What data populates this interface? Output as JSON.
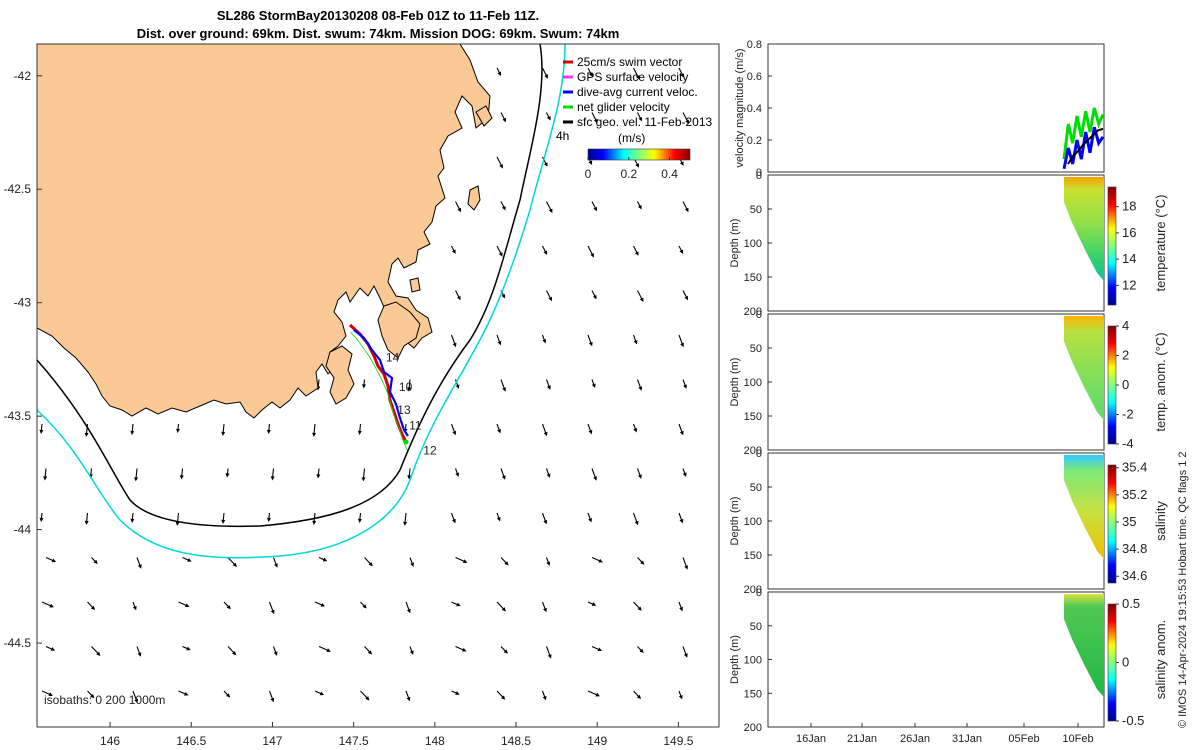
{
  "chart_data": [
    {
      "type": "map",
      "title": "SL286 StormBay20130208 08-Feb 01Z to 11-Feb 11Z.",
      "subtitle": "Dist. over ground: 69km. Dist. swum: 74km. Mission DOG: 69km. Swum: 74km",
      "xlim": [
        145.55,
        149.75
      ],
      "ylim": [
        -44.87,
        -41.86
      ],
      "x_ticks": [
        "146",
        "146.5",
        "147",
        "147.5",
        "148",
        "148.5",
        "149",
        "149.5"
      ],
      "y_ticks": [
        "-42",
        "-42.5",
        "-43",
        "-43.5",
        "-44",
        "-44.5"
      ],
      "legend": {
        "placement": "top-right",
        "entries": [
          "25cm/s swim vector",
          "GPS surface velocity",
          "dive-avg current veloc.",
          "net glider velocity",
          "sfc geo. vel. 11-Feb-2013"
        ],
        "colors": [
          "#d40000",
          "#ff33ff",
          "#0000ff",
          "#00dd00",
          "#000000"
        ],
        "time_label": "4h"
      },
      "colorbar": {
        "label": "(m/s)",
        "ticks": [
          "0",
          "0.2",
          "0.4"
        ],
        "range": [
          0,
          0.5
        ]
      },
      "isobaths_label": "isobaths: 0   200  1000m",
      "day_labels": [
        {
          "text": "14",
          "lon": 147.74,
          "lat": -43.26
        },
        {
          "text": "10",
          "lon": 147.82,
          "lat": -43.39
        },
        {
          "text": "13",
          "lon": 147.81,
          "lat": -43.49
        },
        {
          "text": "11",
          "lon": 147.88,
          "lat": -43.56
        },
        {
          "text": "12",
          "lon": 147.97,
          "lat": -43.67
        }
      ],
      "glider_track": [
        [
          147.48,
          -43.13
        ],
        [
          147.52,
          -43.16
        ],
        [
          147.56,
          -43.2
        ],
        [
          147.6,
          -43.24
        ],
        [
          147.63,
          -43.28
        ],
        [
          147.66,
          -43.32
        ],
        [
          147.68,
          -43.35
        ],
        [
          147.71,
          -43.4
        ],
        [
          147.73,
          -43.45
        ],
        [
          147.75,
          -43.5
        ],
        [
          147.78,
          -43.55
        ],
        [
          147.8,
          -43.6
        ],
        [
          147.83,
          -43.65
        ]
      ],
      "coast_color": "#fbc995",
      "isobath_colors": [
        "#000000",
        "#00d8d8"
      ]
    },
    {
      "type": "line",
      "ylabel": "velocity magnitude (m/s)",
      "ylim": [
        0,
        0.8
      ],
      "y_ticks": [
        "0",
        "0.2",
        "0.4",
        "0.6",
        "0.8"
      ],
      "series": [
        {
          "color": "#00dd00",
          "values": [
            0.08,
            0.3,
            0.18,
            0.35,
            0.22,
            0.38,
            0.25,
            0.4,
            0.3,
            0.36
          ]
        },
        {
          "color": "#0000ff",
          "values": [
            0.02,
            0.15,
            0.05,
            0.2,
            0.08,
            0.25,
            0.12,
            0.28,
            0.18,
            0.22
          ]
        },
        {
          "color": "#000000",
          "values": [
            0.05,
            0.1,
            0.13,
            0.17,
            0.2,
            0.23,
            0.26,
            0.27
          ]
        }
      ]
    },
    {
      "type": "heatmap",
      "colorbar_label": "temperature (°C)",
      "ylabel": "Depth (m)",
      "y_ticks": [
        "0",
        "50",
        "100",
        "150",
        "200"
      ],
      "cbar_ticks": [
        "18",
        "16",
        "14",
        "12"
      ],
      "cbar_range": [
        10.5,
        19.5
      ]
    },
    {
      "type": "heatmap",
      "colorbar_label": "temp. anom. (°C)",
      "ylabel": "Depth (m)",
      "y_ticks": [
        "0",
        "50",
        "100",
        "150",
        "200"
      ],
      "cbar_ticks": [
        "4",
        "2",
        "0",
        "-2",
        "-4"
      ],
      "cbar_range": [
        -4,
        4
      ]
    },
    {
      "type": "heatmap",
      "colorbar_label": "salinity",
      "ylabel": "Depth (m)",
      "y_ticks": [
        "0",
        "50",
        "100",
        "150",
        "200"
      ],
      "cbar_ticks": [
        "35.4",
        "35.2",
        "35",
        "34.8",
        "34.6"
      ],
      "cbar_range": [
        34.55,
        35.42
      ]
    },
    {
      "type": "heatmap",
      "colorbar_label": "salinity anom.",
      "ylabel": "Depth (m)",
      "y_ticks": [
        "0",
        "50",
        "100",
        "150",
        "200"
      ],
      "cbar_ticks": [
        "0.5",
        "0",
        "-0.5"
      ],
      "cbar_range": [
        -0.5,
        0.5
      ],
      "x_ticks": [
        "16Jan",
        "21Jan",
        "26Jan",
        "31Jan",
        "05Feb",
        "10Feb"
      ]
    }
  ],
  "footer": "© IMOS 14-Apr-2024 19:15:53 Hobart time. QC flags 1  2"
}
